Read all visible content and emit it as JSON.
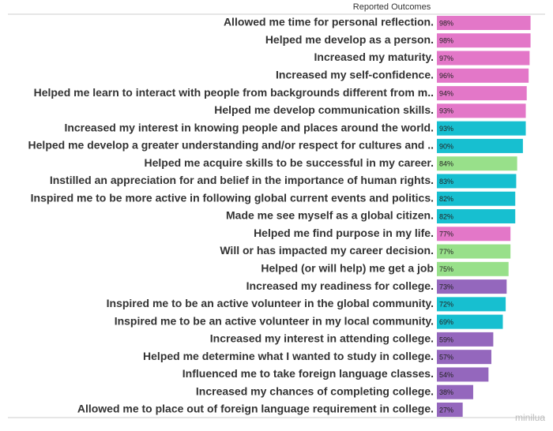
{
  "chart_data": {
    "type": "bar",
    "orientation": "horizontal",
    "title": "Reported Outcomes",
    "categories": [
      "Allowed me time for personal reflection.",
      "Helped me develop as a person.",
      "Increased my maturity.",
      "Increased my self-confidence.",
      "Helped me learn to interact with people from backgrounds different from m..",
      "Helped me develop communication skills.",
      "Increased my interest in knowing people and places around the world.",
      "Helped me develop a greater understanding and/or respect for cultures and ..",
      "Helped me acquire skills to be successful in my career.",
      "Instilled an appreciation for and belief in the importance of human rights.",
      "Inspired me to be more active in following global current events and politics.",
      "Made me see myself as a global citizen.",
      "Helped me find purpose in my life.",
      "Will or has impacted my career decision.",
      "Helped (or will help) me get a job",
      "Increased my readiness for college.",
      "Inspired me to be an active volunteer in the global community.",
      "Inspired me to be an active volunteer in my local community.",
      "Increased my interest in attending college.",
      "Helped me determine what I wanted to study in college.",
      "Influenced me to take foreign language classes.",
      "Increased my chances of completing college.",
      "Allowed me to place out of foreign language requirement in college."
    ],
    "values": [
      98,
      98,
      97,
      96,
      94,
      93,
      93,
      90,
      84,
      83,
      82,
      82,
      77,
      77,
      75,
      73,
      72,
      69,
      59,
      57,
      54,
      38,
      27
    ],
    "value_labels": [
      "98%",
      "98%",
      "97%",
      "96%",
      "94%",
      "93%",
      "93%",
      "90%",
      "84%",
      "83%",
      "82%",
      "82%",
      "77%",
      "77%",
      "75%",
      "73%",
      "72%",
      "69%",
      "59%",
      "57%",
      "54%",
      "38%",
      "27%"
    ],
    "colors": [
      "#e377c8",
      "#e377c8",
      "#e377c8",
      "#e377c8",
      "#e377c8",
      "#e377c8",
      "#17bfd0",
      "#17bfd0",
      "#98e08a",
      "#17bfd0",
      "#17bfd0",
      "#17bfd0",
      "#e377c8",
      "#98e08a",
      "#98e08a",
      "#9467bd",
      "#17bfd0",
      "#17bfd0",
      "#9467bd",
      "#9467bd",
      "#9467bd",
      "#9467bd",
      "#9467bd"
    ],
    "xlim": [
      0,
      100
    ],
    "watermark": "minilua"
  }
}
